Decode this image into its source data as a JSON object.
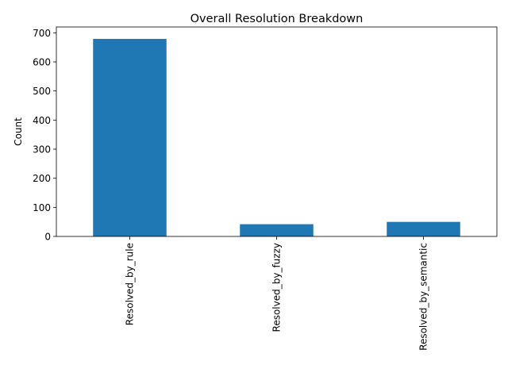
{
  "chart_data": {
    "type": "bar",
    "title": "Overall Resolution Breakdown",
    "xlabel": "",
    "ylabel": "Count",
    "categories": [
      "Resolved_by_rule",
      "Resolved_by_fuzzy",
      "Resolved_by_semantic"
    ],
    "values": [
      679,
      42,
      50
    ],
    "ylim": [
      0,
      720
    ],
    "yticks": [
      0,
      100,
      200,
      300,
      400,
      500,
      600,
      700
    ],
    "grid": false,
    "legend": "none",
    "bar_color": "#1f77b4"
  }
}
